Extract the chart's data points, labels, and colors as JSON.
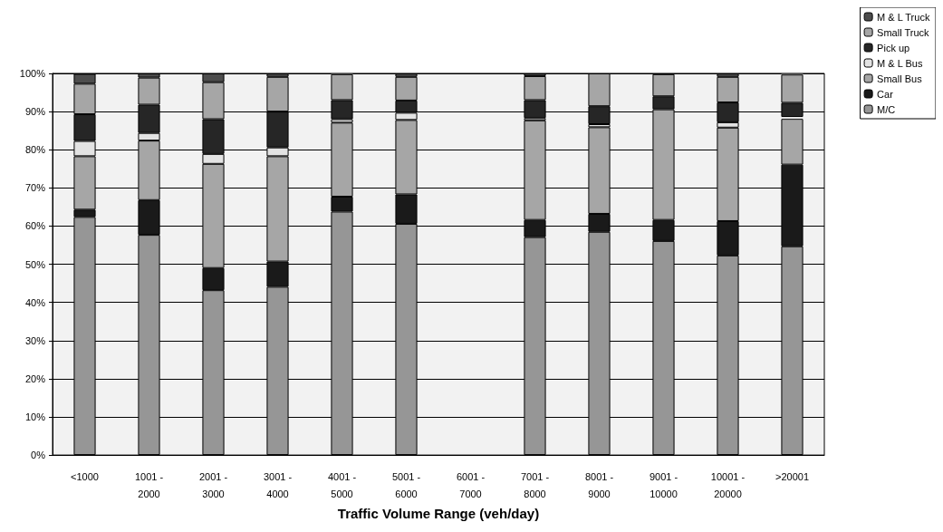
{
  "chart_data": {
    "type": "bar",
    "stacked": true,
    "xlabel": "Traffic Volume Range (veh/day)",
    "categories": [
      "<1000",
      "1001 -\n2000",
      "2001 -\n3000",
      "3001 -\n4000",
      "4001 -\n5000",
      "5001 -\n6000",
      "6001 -\n7000",
      "7001 -\n8000",
      "8001 -\n9000",
      "9001 -\n10000",
      "10001 -\n20000",
      ">20001"
    ],
    "series": [
      {
        "name": "M/C",
        "color": "#969696",
        "values": [
          62.4,
          57.7,
          43.2,
          44.1,
          63.8,
          60.6,
          null,
          57.1,
          58.5,
          56.1,
          52.3,
          54.7
        ]
      },
      {
        "name": "Car",
        "color": "#1a1a1a",
        "values": [
          1.9,
          9.1,
          5.8,
          6.6,
          3.9,
          7.7,
          null,
          4.5,
          4.7,
          5.5,
          9.0,
          21.4
        ]
      },
      {
        "name": "Small Bus",
        "color": "#a6a6a6",
        "values": [
          14.0,
          15.6,
          27.3,
          27.6,
          19.4,
          19.5,
          null,
          26.1,
          22.7,
          29.0,
          24.5,
          12.0
        ]
      },
      {
        "name": "M & L Bus",
        "color": "#e3e3e3",
        "values": [
          4.0,
          2.0,
          2.6,
          2.3,
          0.9,
          1.9,
          null,
          0.6,
          0.8,
          null,
          1.4,
          0.5
        ]
      },
      {
        "name": "Pick up",
        "color": "#262626",
        "values": [
          7.0,
          7.4,
          9.1,
          9.4,
          5.0,
          3.2,
          null,
          4.7,
          4.7,
          3.4,
          5.2,
          3.7
        ]
      },
      {
        "name": "Small Truck",
        "color": "#a6a6a6",
        "values": [
          8.0,
          7.1,
          9.7,
          9.1,
          6.8,
          6.2,
          null,
          6.3,
          8.6,
          5.8,
          6.7,
          7.4
        ]
      },
      {
        "name": "M & L Truck",
        "color": "#4d4d4d",
        "values": [
          2.6,
          1.1,
          2.3,
          0.9,
          0.2,
          0.9,
          null,
          0.7,
          0,
          0,
          0.9,
          0.3
        ]
      }
    ],
    "ylim": [
      0,
      100
    ],
    "yticks": [
      {
        "value": 0,
        "label": "0%"
      },
      {
        "value": 10,
        "label": "10%"
      },
      {
        "value": 20,
        "label": "20%"
      },
      {
        "value": 30,
        "label": "30%"
      },
      {
        "value": 40,
        "label": "40%"
      },
      {
        "value": 50,
        "label": "50%"
      },
      {
        "value": 60,
        "label": "60%"
      },
      {
        "value": 70,
        "label": "70%"
      },
      {
        "value": 80,
        "label": "80%"
      },
      {
        "value": 90,
        "label": "90%"
      },
      {
        "value": 100,
        "label": "100%"
      }
    ],
    "grid": "y",
    "legend": "top right"
  }
}
